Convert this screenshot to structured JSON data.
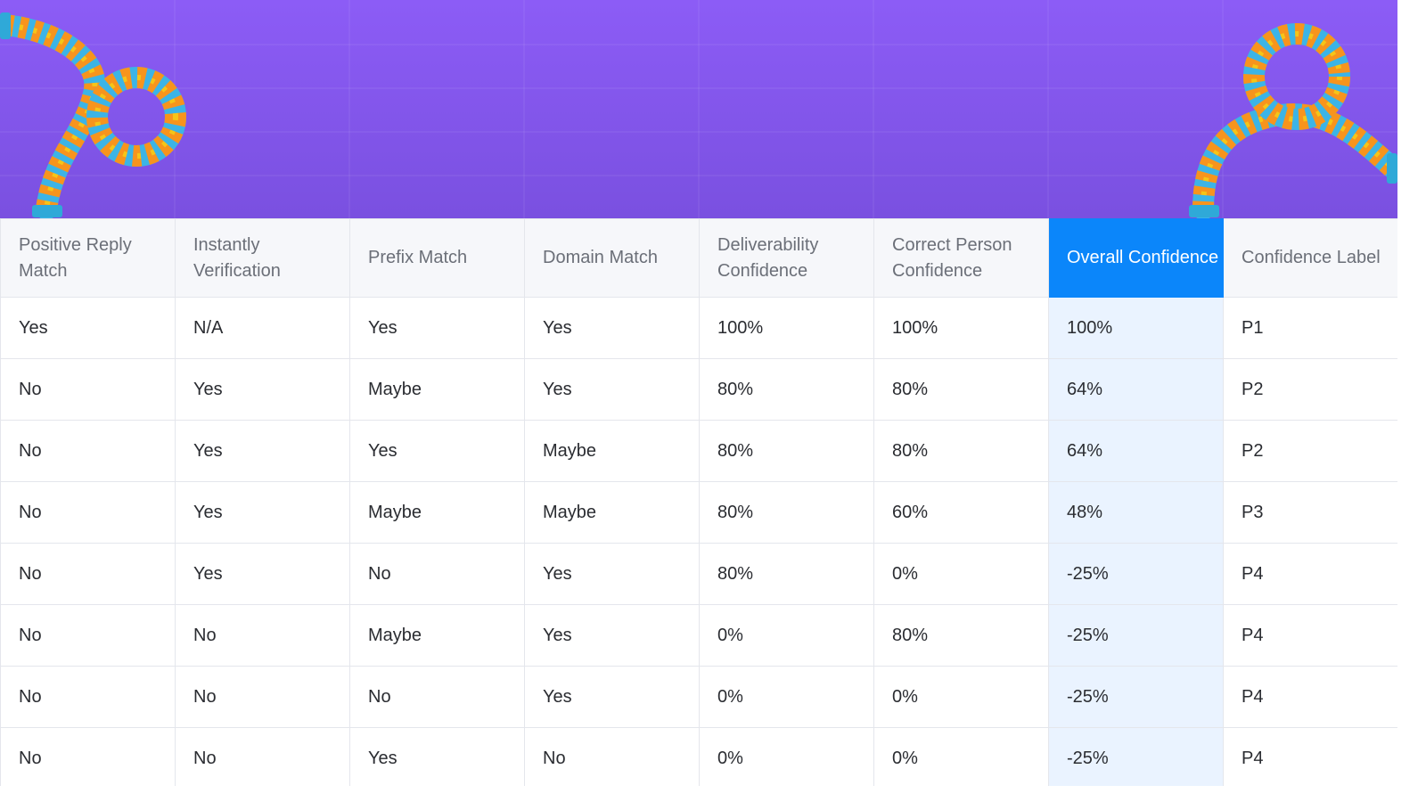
{
  "table": {
    "headers": [
      "Positive Reply Match",
      "Instantly Verification",
      "Prefix Match",
      "Domain Match",
      "Deliverability Confidence",
      "Correct Person Confidence",
      "Overall Confidence",
      "Confidence Label"
    ],
    "highlighted_column": "Overall Confidence",
    "rows": [
      [
        "Yes",
        "N/A",
        "Yes",
        "Yes",
        "100%",
        "100%",
        "100%",
        "P1"
      ],
      [
        "No",
        "Yes",
        "Maybe",
        "Yes",
        "80%",
        "80%",
        "64%",
        "P2"
      ],
      [
        "No",
        "Yes",
        "Yes",
        "Maybe",
        "80%",
        "80%",
        "64%",
        "P2"
      ],
      [
        "No",
        "Yes",
        "Maybe",
        "Maybe",
        "80%",
        "60%",
        "48%",
        "P3"
      ],
      [
        "No",
        "Yes",
        "No",
        "Yes",
        "80%",
        "0%",
        "-25%",
        "P4"
      ],
      [
        "No",
        "No",
        "Maybe",
        "Yes",
        "0%",
        "80%",
        "-25%",
        "P4"
      ],
      [
        "No",
        "No",
        "No",
        "Yes",
        "0%",
        "0%",
        "-25%",
        "P4"
      ],
      [
        "No",
        "No",
        "Yes",
        "No",
        "0%",
        "0%",
        "-25%",
        "P4"
      ]
    ]
  },
  "colors": {
    "banner_top": "#8c5cf6",
    "banner_bottom": "#7a50e0",
    "header_highlight": "#0b86fa",
    "column_highlight": "#eaf3ff",
    "rope_orange": "#f7941d",
    "rope_blue": "#3cb4e6",
    "rope_yellow": "#f5c518"
  },
  "decor": {
    "left_graphic": "rope-icon",
    "right_graphic": "rope-icon"
  }
}
